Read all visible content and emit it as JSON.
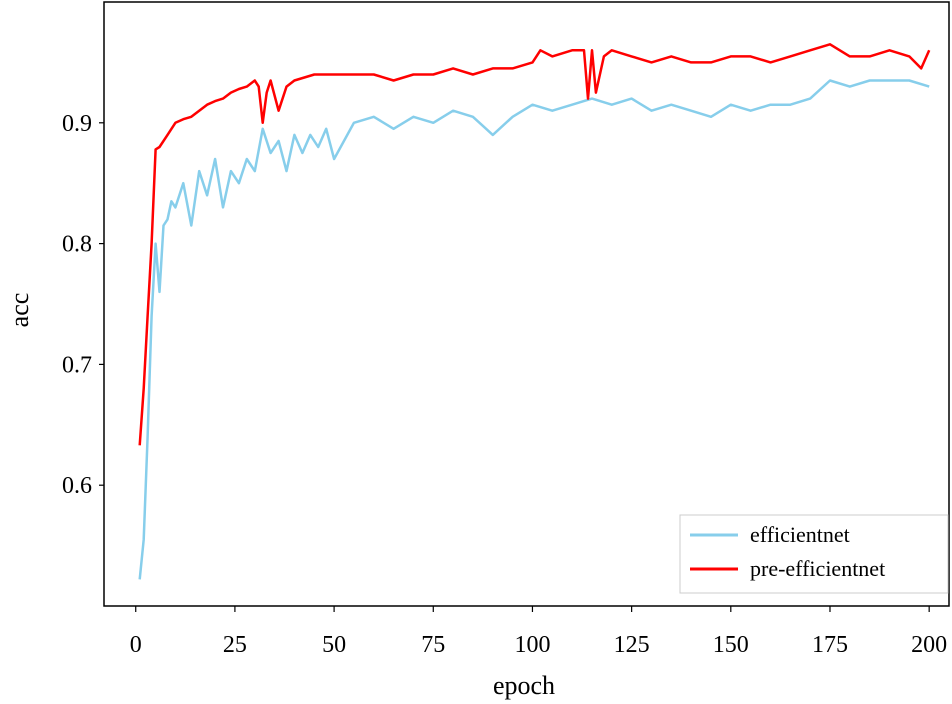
{
  "chart_data": {
    "type": "line",
    "xlabel": "epoch",
    "ylabel": "acc",
    "xlim": [
      -8,
      205
    ],
    "ylim": [
      0.5,
      1.0
    ],
    "xticks": [
      0,
      25,
      50,
      75,
      100,
      125,
      150,
      175,
      200
    ],
    "yticks": [
      0.6,
      0.7,
      0.8,
      0.9
    ],
    "xtick_labels": [
      "0",
      "25",
      "50",
      "75",
      "100",
      "125",
      "150",
      "175",
      "200"
    ],
    "ytick_labels": [
      "0.6",
      "0.7",
      "0.8",
      "0.9"
    ],
    "grid": false,
    "legend_position": "lower-right",
    "series": [
      {
        "name": "efficientnet",
        "color": "#87CEEB",
        "x": [
          1,
          2,
          3,
          4,
          5,
          6,
          7,
          8,
          9,
          10,
          12,
          14,
          16,
          18,
          20,
          22,
          24,
          26,
          28,
          30,
          32,
          34,
          36,
          38,
          40,
          42,
          44,
          46,
          48,
          50,
          55,
          60,
          65,
          70,
          75,
          80,
          85,
          90,
          95,
          100,
          105,
          110,
          115,
          120,
          125,
          130,
          135,
          140,
          145,
          150,
          155,
          160,
          165,
          170,
          175,
          180,
          185,
          190,
          195,
          200
        ],
        "values": [
          0.522,
          0.555,
          0.64,
          0.74,
          0.8,
          0.76,
          0.815,
          0.82,
          0.835,
          0.83,
          0.85,
          0.815,
          0.86,
          0.84,
          0.87,
          0.83,
          0.86,
          0.85,
          0.87,
          0.86,
          0.895,
          0.875,
          0.885,
          0.86,
          0.89,
          0.875,
          0.89,
          0.88,
          0.895,
          0.87,
          0.9,
          0.905,
          0.895,
          0.905,
          0.9,
          0.91,
          0.905,
          0.89,
          0.905,
          0.915,
          0.91,
          0.915,
          0.92,
          0.915,
          0.92,
          0.91,
          0.915,
          0.91,
          0.905,
          0.915,
          0.91,
          0.915,
          0.915,
          0.92,
          0.935,
          0.93,
          0.935,
          0.935,
          0.935,
          0.93
        ]
      },
      {
        "name": "pre-efficientnet",
        "color": "#FF0000",
        "x": [
          1,
          2,
          3,
          4,
          5,
          6,
          8,
          10,
          12,
          14,
          16,
          18,
          20,
          22,
          24,
          26,
          28,
          30,
          31,
          32,
          33,
          34,
          36,
          38,
          40,
          45,
          50,
          55,
          60,
          65,
          70,
          75,
          80,
          85,
          90,
          95,
          100,
          102,
          105,
          110,
          113,
          114,
          115,
          116,
          118,
          120,
          125,
          130,
          135,
          140,
          145,
          150,
          155,
          160,
          165,
          170,
          175,
          180,
          185,
          190,
          195,
          198,
          200
        ],
        "values": [
          0.633,
          0.68,
          0.74,
          0.8,
          0.878,
          0.88,
          0.89,
          0.9,
          0.903,
          0.905,
          0.91,
          0.915,
          0.918,
          0.92,
          0.925,
          0.928,
          0.93,
          0.935,
          0.93,
          0.9,
          0.925,
          0.935,
          0.91,
          0.93,
          0.935,
          0.94,
          0.94,
          0.94,
          0.94,
          0.935,
          0.94,
          0.94,
          0.945,
          0.94,
          0.945,
          0.945,
          0.95,
          0.96,
          0.955,
          0.96,
          0.96,
          0.92,
          0.96,
          0.925,
          0.955,
          0.96,
          0.955,
          0.95,
          0.955,
          0.95,
          0.95,
          0.955,
          0.955,
          0.95,
          0.955,
          0.96,
          0.965,
          0.955,
          0.955,
          0.96,
          0.955,
          0.945,
          0.96
        ]
      }
    ]
  }
}
